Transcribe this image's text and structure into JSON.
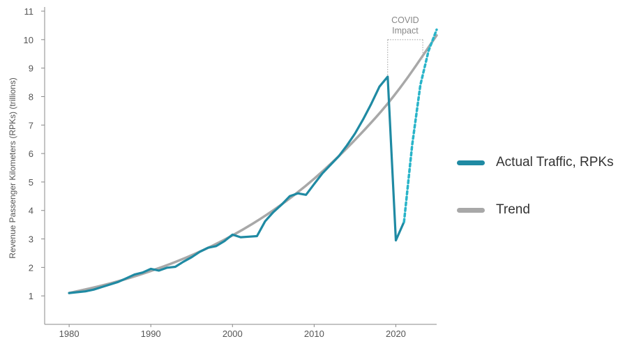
{
  "chart_data": {
    "type": "line",
    "ylabel": "Revenue Passenger Kilometers (RPKs) (trillions)",
    "xlabel": "",
    "xlim": [
      1977,
      2025
    ],
    "ylim": [
      0,
      11
    ],
    "yticks": [
      1,
      2,
      3,
      4,
      5,
      6,
      7,
      8,
      9,
      10,
      11
    ],
    "xticks": [
      1980,
      1990,
      2000,
      2010,
      2020
    ],
    "annotation": {
      "lines": [
        "COVID",
        "Impact"
      ],
      "x_range": [
        2019,
        2023.3
      ],
      "y": 10.0
    },
    "series": [
      {
        "name": "Actual Traffic, RPKs",
        "color": "#1f8aa3",
        "style": "solid",
        "x": [
          1980,
          1981,
          1982,
          1983,
          1984,
          1985,
          1986,
          1987,
          1988,
          1989,
          1990,
          1991,
          1992,
          1993,
          1994,
          1995,
          1996,
          1997,
          1998,
          1999,
          2000,
          2001,
          2002,
          2003,
          2004,
          2005,
          2006,
          2007,
          2008,
          2009,
          2010,
          2011,
          2012,
          2013,
          2014,
          2015,
          2016,
          2017,
          2018,
          2019,
          2020,
          2021
        ],
        "values": [
          1.1,
          1.13,
          1.16,
          1.22,
          1.31,
          1.4,
          1.49,
          1.62,
          1.75,
          1.82,
          1.95,
          1.89,
          1.99,
          2.02,
          2.2,
          2.36,
          2.55,
          2.69,
          2.75,
          2.92,
          3.15,
          3.06,
          3.08,
          3.1,
          3.62,
          3.94,
          4.2,
          4.5,
          4.6,
          4.55,
          4.93,
          5.3,
          5.6,
          5.9,
          6.28,
          6.7,
          7.2,
          7.75,
          8.35,
          8.7,
          2.95,
          3.6
        ]
      },
      {
        "name": "Forecast",
        "color": "#29b4c9",
        "style": "dotted",
        "x": [
          2021,
          2022,
          2023,
          2024,
          2025
        ],
        "values": [
          3.6,
          6.3,
          8.4,
          9.6,
          10.35
        ]
      },
      {
        "name": "Trend",
        "color": "#a8a8a8",
        "style": "solid",
        "x": [
          1980,
          1985,
          1990,
          1995,
          2000,
          2005,
          2010,
          2015,
          2020,
          2025
        ],
        "values": [
          1.1,
          1.42,
          1.86,
          2.41,
          3.1,
          3.98,
          5.08,
          6.45,
          8.05,
          10.15
        ]
      }
    ],
    "legend": [
      {
        "label": "Actual Traffic, RPKs",
        "color": "#1f8aa3"
      },
      {
        "label": "Trend",
        "color": "#a8a8a8"
      }
    ],
    "legend_position": "right",
    "grid": false
  }
}
